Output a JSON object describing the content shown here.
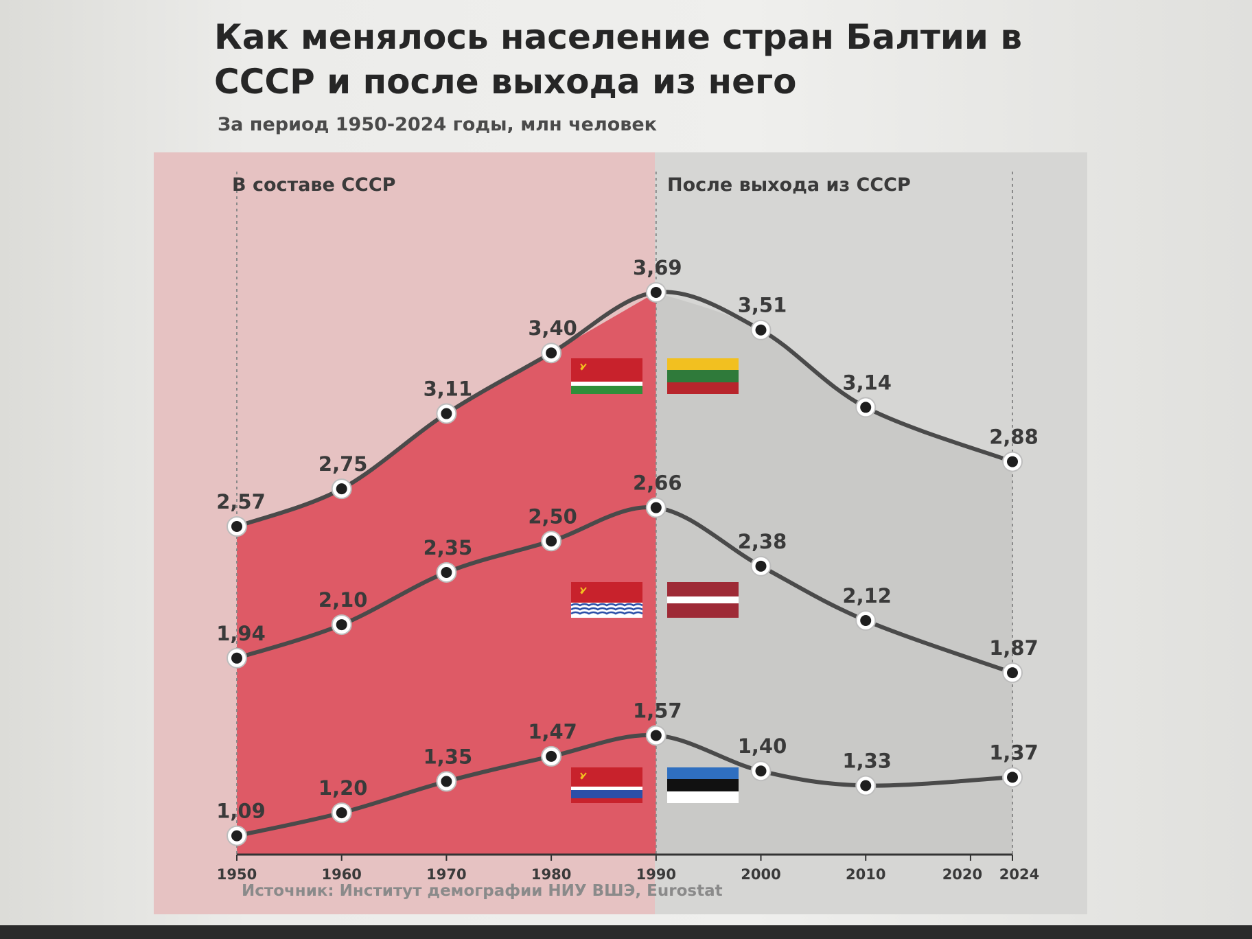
{
  "title": "Как менялось население стран Балтии в СССР и после выхода из него",
  "subtitle": "За период 1950-2024 годы, млн человек",
  "source": "Источник: Институт демографии НИУ ВШЭ, Eurostat",
  "colors": {
    "ussr_fill": "#de5a66",
    "ussr_band": "#e6c2c2",
    "after_fill": "#c9c9c7",
    "line": "#4a4a4a",
    "marker": "#1e1e1e"
  },
  "chart_data": {
    "type": "line",
    "x_ticks": [
      1950,
      1960,
      1970,
      1980,
      1990,
      2000,
      2010,
      2020,
      2024
    ],
    "xlim": [
      1950,
      2024
    ],
    "ylim": [
      1.0,
      3.9
    ],
    "grid": false,
    "phases": [
      {
        "label": "В составе СССР",
        "from": 1950,
        "to": 1990
      },
      {
        "label": "После выхода из СССР",
        "from": 1990,
        "to": 2024
      }
    ],
    "series": [
      {
        "id": "lithuania",
        "flags": [
          "lithuanian-ssr-flag",
          "lithuania-flag"
        ],
        "x": [
          1950,
          1960,
          1970,
          1980,
          1990,
          2000,
          2010,
          2024
        ],
        "values": [
          2.57,
          2.75,
          3.11,
          3.4,
          3.69,
          3.51,
          3.14,
          2.88
        ],
        "labels": [
          "2,57",
          "2,75",
          "3,11",
          "3,40",
          "3,69",
          "3,51",
          "3,14",
          "2,88"
        ]
      },
      {
        "id": "latvia",
        "flags": [
          "latvian-ssr-flag",
          "latvia-flag"
        ],
        "x": [
          1950,
          1960,
          1970,
          1980,
          1990,
          2000,
          2010,
          2024
        ],
        "values": [
          1.94,
          2.1,
          2.35,
          2.5,
          2.66,
          2.38,
          2.12,
          1.87
        ],
        "labels": [
          "1,94",
          "2,10",
          "2,35",
          "2,50",
          "2,66",
          "2,38",
          "2,12",
          "1,87"
        ]
      },
      {
        "id": "estonia",
        "flags": [
          "estonian-ssr-flag",
          "estonia-flag"
        ],
        "x": [
          1950,
          1960,
          1970,
          1980,
          1990,
          2000,
          2010,
          2024
        ],
        "values": [
          1.09,
          1.2,
          1.35,
          1.47,
          1.57,
          1.4,
          1.33,
          1.37
        ],
        "labels": [
          "1,09",
          "1,20",
          "1,35",
          "1,47",
          "1,57",
          "1,40",
          "1,33",
          "1,37"
        ]
      }
    ]
  }
}
